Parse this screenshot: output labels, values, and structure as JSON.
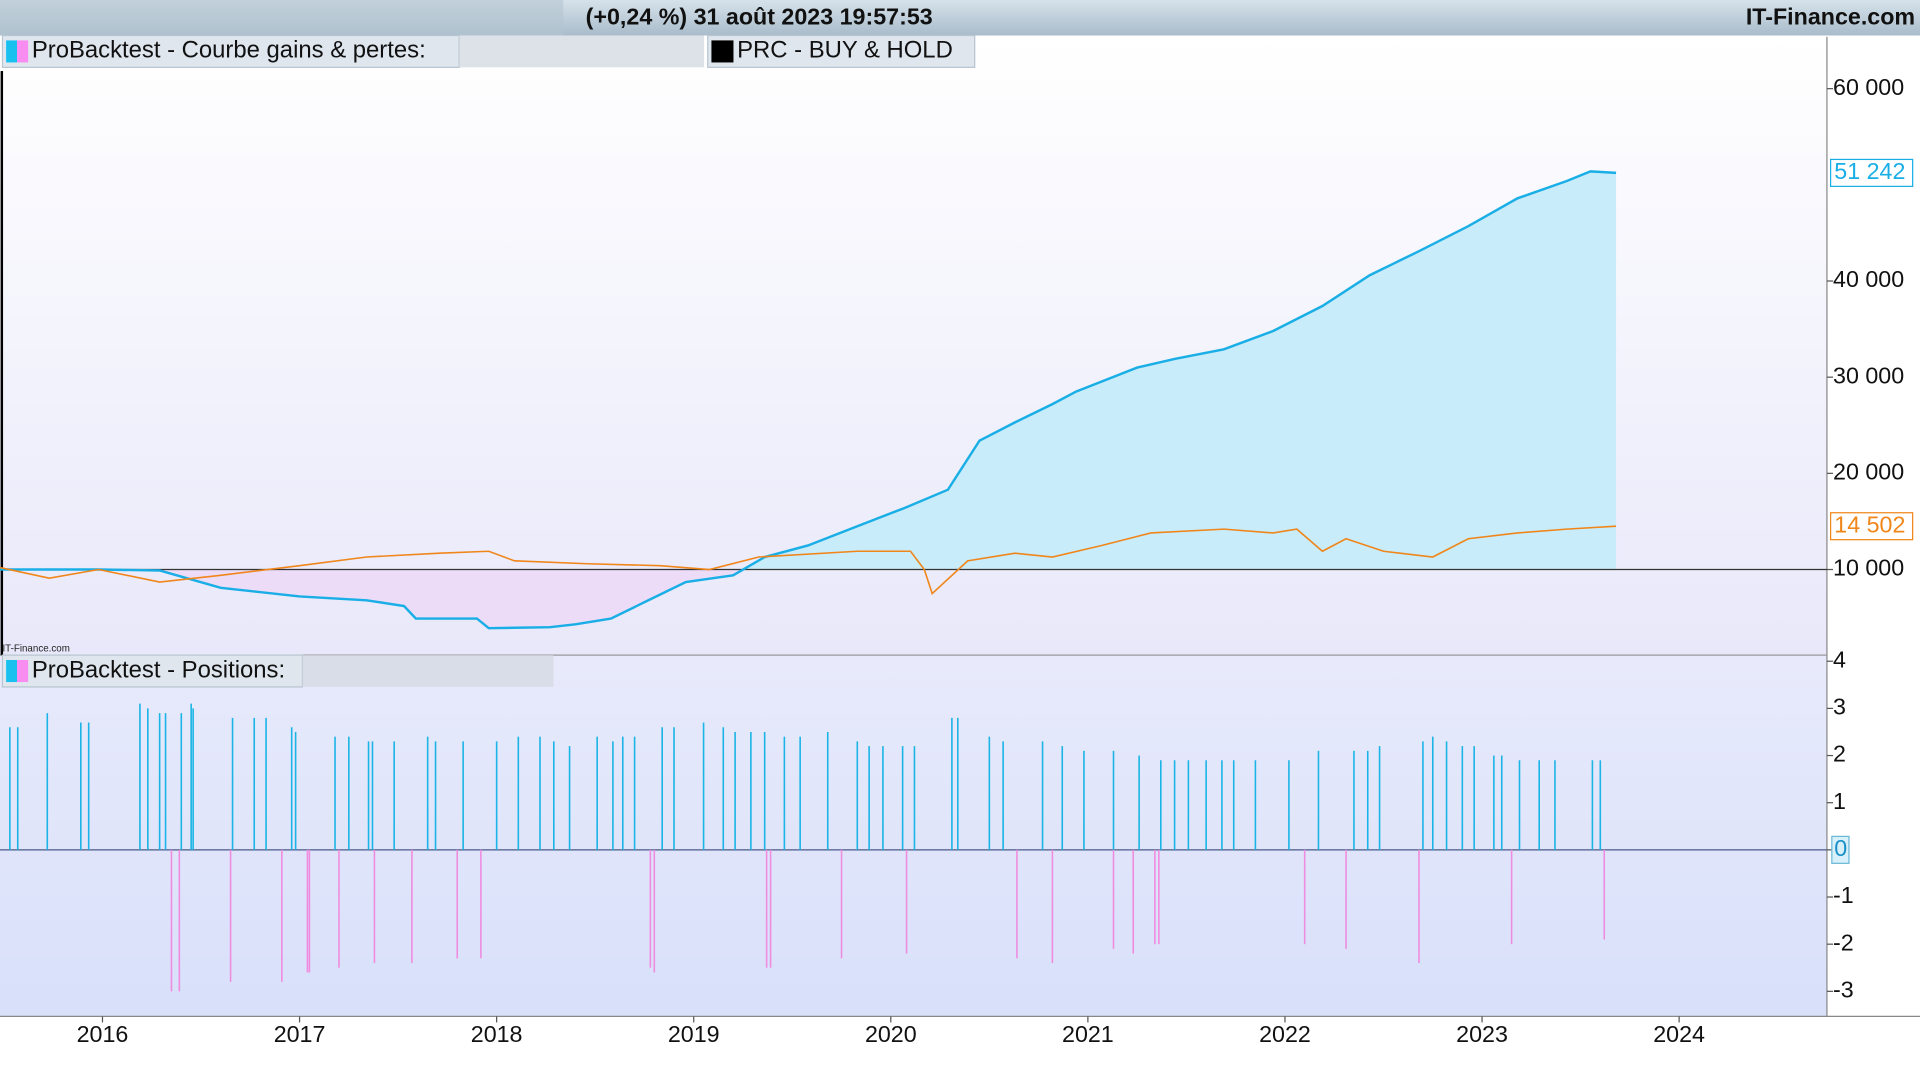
{
  "header": {
    "status": "(+0,24 %) 31 août 2023 19:57:53",
    "brand": "IT-Finance.com"
  },
  "watermark": "IT-Finance.com",
  "chart_data": [
    {
      "type": "line",
      "xlim": [
        2015.48,
        2024.75
      ],
      "ylim": [
        1100,
        65400
      ],
      "yticks": [
        {
          "value": 10000,
          "label": "10 000"
        },
        {
          "value": 20000,
          "label": "20 000"
        },
        {
          "value": 30000,
          "label": "30 000"
        },
        {
          "value": 40000,
          "label": "40 000"
        },
        {
          "value": 60000,
          "label": "60 000"
        }
      ],
      "baseline": 10000,
      "series": [
        {
          "name": "ProBacktest - Courbe gains & pertes:",
          "color": "#1aaee6",
          "area_color_above": "#c8ecfa",
          "area_color_below": "#ecdcf8",
          "last_value_label": "51 242",
          "x": [
            2015.48,
            2015.98,
            2016.29,
            2016.6,
            2017.0,
            2017.34,
            2017.53,
            2017.59,
            2017.9,
            2017.96,
            2018.27,
            2018.4,
            2018.58,
            2018.77,
            2018.96,
            2019.2,
            2019.36,
            2019.58,
            2019.83,
            2020.07,
            2020.29,
            2020.45,
            2020.63,
            2020.82,
            2020.94,
            2021.25,
            2021.44,
            2021.69,
            2021.94,
            2022.19,
            2022.43,
            2022.68,
            2022.93,
            2023.18,
            2023.43,
            2023.55,
            2023.68
          ],
          "values": [
            10000,
            10000,
            9900,
            8100,
            7200,
            6800,
            6200,
            4900,
            4900,
            3900,
            4000,
            4300,
            4900,
            6800,
            8700,
            9400,
            11300,
            12500,
            14500,
            16400,
            18300,
            23400,
            25300,
            27200,
            28500,
            31000,
            31900,
            32900,
            34800,
            37400,
            40600,
            43100,
            45700,
            48600,
            50400,
            51400,
            51242
          ]
        },
        {
          "name": "PRC - BUY & HOLD",
          "color": "#f0861a",
          "last_value_label": "14 502",
          "x": [
            2015.48,
            2015.73,
            2015.98,
            2016.29,
            2016.6,
            2017.0,
            2017.34,
            2017.71,
            2017.96,
            2018.09,
            2018.46,
            2018.83,
            2019.08,
            2019.33,
            2019.83,
            2020.1,
            2020.17,
            2020.21,
            2020.39,
            2020.63,
            2020.82,
            2021.07,
            2021.32,
            2021.69,
            2021.94,
            2022.06,
            2022.19,
            2022.31,
            2022.5,
            2022.75,
            2022.93,
            2023.18,
            2023.43,
            2023.68
          ],
          "values": [
            10200,
            9100,
            10000,
            8700,
            9400,
            10400,
            11300,
            11700,
            11900,
            10900,
            10600,
            10400,
            10000,
            11300,
            11900,
            11900,
            10000,
            7500,
            10900,
            11700,
            11300,
            12500,
            13800,
            14200,
            13800,
            14200,
            11900,
            13200,
            11900,
            11300,
            13200,
            13800,
            14200,
            14502
          ]
        }
      ]
    },
    {
      "type": "bar",
      "xlim": [
        2015.48,
        2024.75
      ],
      "xticks": [
        2016,
        2017,
        2018,
        2019,
        2020,
        2021,
        2022,
        2023,
        2024
      ],
      "ylim": [
        -3.53,
        4.13
      ],
      "yticks": [
        -3,
        -2,
        -1,
        0,
        1,
        2,
        3,
        4
      ],
      "series": [
        {
          "name": "ProBacktest - Positions:",
          "color": "#1ab4e6",
          "negative_color": "#f08ce0",
          "x": [
            2015.53,
            2015.57,
            2015.72,
            2015.89,
            2015.93,
            2016.19,
            2016.23,
            2016.29,
            2016.32,
            2016.35,
            2016.39,
            2016.4,
            2016.45,
            2016.46,
            2016.65,
            2016.66,
            2016.77,
            2016.83,
            2016.91,
            2016.96,
            2016.98,
            2017.04,
            2017.05,
            2017.18,
            2017.2,
            2017.25,
            2017.35,
            2017.37,
            2017.38,
            2017.48,
            2017.57,
            2017.65,
            2017.69,
            2017.8,
            2017.83,
            2017.92,
            2018.0,
            2018.11,
            2018.22,
            2018.29,
            2018.37,
            2018.51,
            2018.59,
            2018.64,
            2018.7,
            2018.78,
            2018.8,
            2018.84,
            2018.9,
            2019.05,
            2019.15,
            2019.21,
            2019.29,
            2019.36,
            2019.37,
            2019.39,
            2019.46,
            2019.54,
            2019.68,
            2019.75,
            2019.83,
            2019.89,
            2019.96,
            2020.06,
            2020.08,
            2020.12,
            2020.31,
            2020.34,
            2020.5,
            2020.57,
            2020.64,
            2020.77,
            2020.82,
            2020.87,
            2020.98,
            2021.13,
            2021.13,
            2021.23,
            2021.26,
            2021.34,
            2021.36,
            2021.37,
            2021.44,
            2021.51,
            2021.6,
            2021.68,
            2021.74,
            2021.85,
            2022.02,
            2022.1,
            2022.17,
            2022.31,
            2022.35,
            2022.42,
            2022.48,
            2022.68,
            2022.7,
            2022.75,
            2022.82,
            2022.9,
            2022.96,
            2023.06,
            2023.1,
            2023.15,
            2023.19,
            2023.29,
            2023.37,
            2023.56,
            2023.6,
            2023.62
          ],
          "values": [
            2.6,
            2.6,
            2.9,
            2.7,
            2.7,
            3.1,
            3.0,
            2.9,
            2.9,
            -3.0,
            -3.0,
            2.9,
            3.1,
            3.0,
            -2.8,
            2.8,
            2.8,
            2.8,
            -2.8,
            2.6,
            2.5,
            -2.6,
            -2.6,
            2.4,
            -2.5,
            2.4,
            2.3,
            2.3,
            -2.4,
            2.3,
            -2.4,
            2.4,
            2.3,
            -2.3,
            2.3,
            -2.3,
            2.3,
            2.4,
            2.4,
            2.3,
            2.2,
            2.4,
            2.3,
            2.4,
            2.4,
            -2.5,
            -2.6,
            2.6,
            2.6,
            2.7,
            2.6,
            2.5,
            2.5,
            2.5,
            -2.5,
            -2.5,
            2.4,
            2.4,
            2.5,
            -2.3,
            2.3,
            2.2,
            2.2,
            2.2,
            -2.2,
            2.2,
            2.8,
            2.8,
            2.4,
            2.3,
            -2.3,
            2.3,
            -2.4,
            2.2,
            2.1,
            2.1,
            -2.1,
            -2.2,
            2.0,
            -2.0,
            -2.0,
            1.9,
            1.9,
            1.9,
            1.9,
            1.9,
            1.9,
            1.9,
            1.9,
            -2.0,
            2.1,
            -2.1,
            2.1,
            2.1,
            2.2,
            -2.4,
            2.3,
            2.4,
            2.3,
            2.2,
            2.2,
            2.0,
            2.0,
            -2.0,
            1.9,
            1.9,
            1.9,
            1.9,
            1.9,
            -1.9
          ]
        }
      ]
    }
  ]
}
